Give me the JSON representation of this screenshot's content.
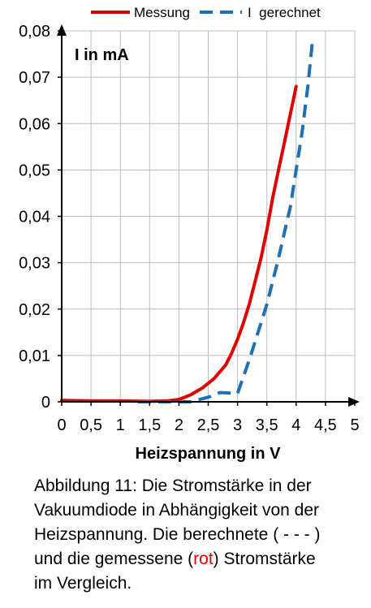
{
  "chart_data": {
    "type": "line",
    "title": "",
    "ylabel": "I in mA",
    "xlabel": "Heizspannung in V",
    "xlim": [
      0,
      5
    ],
    "ylim": [
      0,
      0.08
    ],
    "grid": true,
    "legend_position": "top",
    "x_ticks": [
      0,
      0.5,
      1,
      1.5,
      2,
      2.5,
      3,
      3.5,
      4,
      4.5,
      5
    ],
    "x_tick_labels": [
      "0",
      "0,5",
      "1",
      "1,5",
      "2",
      "2,5",
      "3",
      "3,5",
      "4",
      "4,5",
      "5"
    ],
    "y_ticks": [
      0,
      0.01,
      0.02,
      0.03,
      0.04,
      0.05,
      0.06,
      0.07,
      0.08
    ],
    "y_tick_labels": [
      "0",
      "0,01",
      "0,02",
      "0,03",
      "0,04",
      "0,05",
      "0,06",
      "0,07",
      "0,08"
    ],
    "series": [
      {
        "name": "Messung",
        "color": "#e00000",
        "style": "solid",
        "points": [
          [
            0,
            0.0003
          ],
          [
            0.5,
            0.0002
          ],
          [
            1.0,
            0.0002
          ],
          [
            1.5,
            0.0001
          ],
          [
            1.8,
            0.0002
          ],
          [
            2.0,
            0.0005
          ],
          [
            2.2,
            0.0015
          ],
          [
            2.4,
            0.003
          ],
          [
            2.6,
            0.005
          ],
          [
            2.8,
            0.008
          ],
          [
            2.9,
            0.0105
          ],
          [
            3.0,
            0.0135
          ],
          [
            3.1,
            0.017
          ],
          [
            3.2,
            0.021
          ],
          [
            3.3,
            0.026
          ],
          [
            3.4,
            0.031
          ],
          [
            3.5,
            0.037
          ],
          [
            3.6,
            0.044
          ],
          [
            3.7,
            0.05
          ],
          [
            3.8,
            0.056
          ],
          [
            3.9,
            0.062
          ],
          [
            4.0,
            0.068
          ]
        ]
      },
      {
        "name": "I  gerechnet",
        "color": "#1f6fb5",
        "style": "dashed",
        "points": [
          [
            1.3,
            0.0
          ],
          [
            2.2,
            0.0
          ],
          [
            2.5,
            0.001
          ],
          [
            2.7,
            0.002
          ],
          [
            3.0,
            0.0018
          ],
          [
            3.2,
            0.009
          ],
          [
            3.4,
            0.017
          ],
          [
            3.5,
            0.021
          ],
          [
            3.7,
            0.031
          ],
          [
            3.9,
            0.042
          ],
          [
            4.0,
            0.05
          ],
          [
            4.1,
            0.058
          ],
          [
            4.2,
            0.068
          ],
          [
            4.28,
            0.078
          ]
        ]
      }
    ]
  },
  "caption": {
    "line1": "Abbildung 11: Die Stromstärke in der",
    "line2": "Vakuumdiode in Abhängigkeit von der",
    "line3": "Heizspannung. Die berechnete ( - - - )",
    "line4a": "und die gemessene (",
    "line4b": "rot",
    "line4c": ")  Stromstärke",
    "line5": "im Vergleich."
  }
}
